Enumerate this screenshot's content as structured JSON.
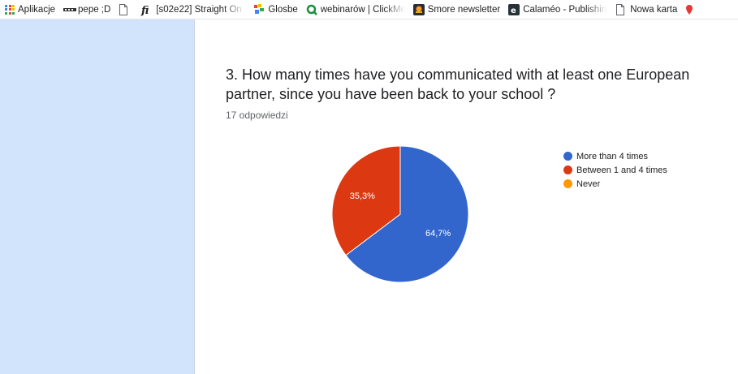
{
  "bookmarks": [
    {
      "label": "Aplikacje",
      "icon": "apps-grid-icon"
    },
    {
      "label": "pepe ;D",
      "icon": "bookmark-favicon-icon"
    },
    {
      "label": "",
      "icon": "blank-page-icon"
    },
    {
      "label": "[s02e22] Straight On",
      "icon": "fi-logo-icon"
    },
    {
      "label": "Glosbe",
      "icon": "glosbe-logo-icon"
    },
    {
      "label": "webinarów | ClickMe",
      "icon": "clickmeeting-logo-icon"
    },
    {
      "label": "Smore newsletter",
      "icon": "smore-logo-icon"
    },
    {
      "label": "Calaméo - Publishing",
      "icon": "calameo-logo-icon"
    },
    {
      "label": "Nowa karta",
      "icon": "blank-page-icon"
    }
  ],
  "question": {
    "title": "3. How many times have you communicated with at least one European partner, since you have been back to your school ?",
    "responses": "17 odpowiedzi"
  },
  "colors": {
    "blue": "#3366cc",
    "red": "#dc3912",
    "orange": "#ff9900",
    "panel": "#d2e3fc"
  },
  "chart_data": {
    "type": "pie",
    "categories": [
      "More than 4 times",
      "Between 1 and 4 times",
      "Never"
    ],
    "values": [
      64.7,
      35.3,
      0
    ],
    "data_labels": [
      "64,7%",
      "35,3%",
      ""
    ],
    "colors": [
      "#3366cc",
      "#dc3912",
      "#ff9900"
    ],
    "legend_position": "right"
  }
}
